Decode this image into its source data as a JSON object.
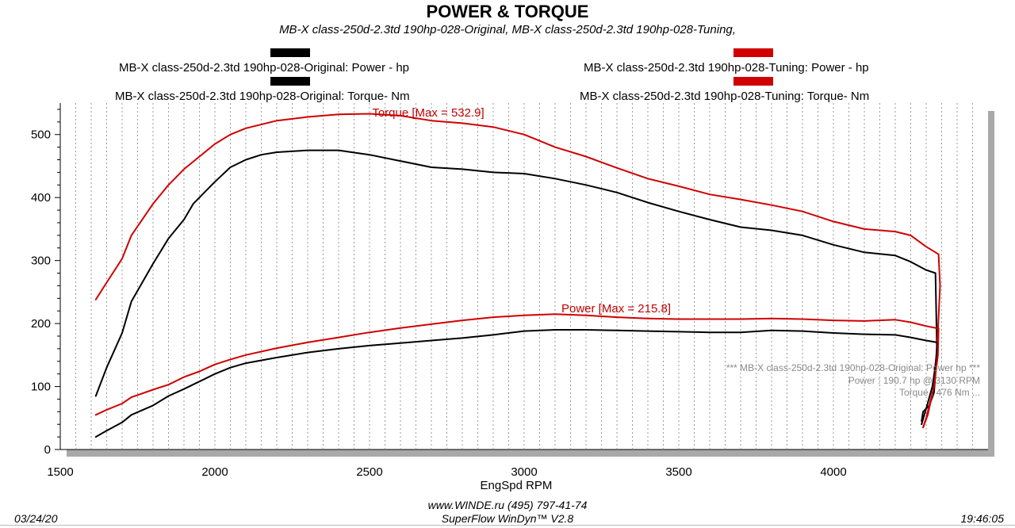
{
  "chart_data": {
    "type": "line",
    "title": "POWER & TORQUE",
    "subtitle": "MB-X class-250d-2.3td 190hp-028-Original, MB-X class-250d-2.3td 190hp-028-Tuning,",
    "xlabel": "EngSpd  RPM",
    "ylabel": "",
    "xlim": [
      1500,
      4500
    ],
    "ylim": [
      0,
      550
    ],
    "x_ticks": [
      1500,
      2000,
      2500,
      3000,
      3500,
      4000
    ],
    "y_ticks": [
      0,
      100,
      200,
      300,
      400,
      500
    ],
    "grid": "vertical dashed",
    "legend": [
      {
        "label": "MB-X class-250d-2.3td 190hp-028-Original: Power -  hp",
        "color": "#000000"
      },
      {
        "label": "MB-X class-250d-2.3td 190hp-028-Original: Torque-  Nm",
        "color": "#000000"
      },
      {
        "label": "MB-X class-250d-2.3td 190hp-028-Tuning: Power -  hp",
        "color": "#d00000"
      },
      {
        "label": "MB-X class-250d-2.3td 190hp-028-Tuning: Torque-  Nm",
        "color": "#d00000"
      }
    ],
    "annotations": {
      "torque_max": "Torque [Max = 532.9]",
      "power_max": "Power  [Max = 215.8]"
    },
    "info_box": {
      "line1": "*** MB-X class-250d-2.3td 190hp-028-Original: Power  hp  ***",
      "line2": "Power :  190.7 hp     @ 3130 RPM",
      "line3": "Torque :  476 Nm     ..."
    },
    "series": [
      {
        "name": "Original Torque",
        "unit": "Nm",
        "color": "#000000",
        "points": [
          [
            1615,
            85
          ],
          [
            1650,
            130
          ],
          [
            1700,
            185
          ],
          [
            1730,
            235
          ],
          [
            1800,
            295
          ],
          [
            1850,
            335
          ],
          [
            1900,
            365
          ],
          [
            1930,
            390
          ],
          [
            2000,
            425
          ],
          [
            2050,
            448
          ],
          [
            2100,
            460
          ],
          [
            2150,
            468
          ],
          [
            2200,
            472
          ],
          [
            2300,
            475
          ],
          [
            2400,
            475
          ],
          [
            2500,
            468
          ],
          [
            2600,
            458
          ],
          [
            2700,
            448
          ],
          [
            2800,
            445
          ],
          [
            2900,
            440
          ],
          [
            3000,
            438
          ],
          [
            3100,
            430
          ],
          [
            3200,
            420
          ],
          [
            3300,
            408
          ],
          [
            3400,
            392
          ],
          [
            3500,
            378
          ],
          [
            3600,
            365
          ],
          [
            3700,
            353
          ],
          [
            3800,
            348
          ],
          [
            3900,
            340
          ],
          [
            4000,
            325
          ],
          [
            4100,
            313
          ],
          [
            4200,
            308
          ],
          [
            4250,
            298
          ],
          [
            4300,
            285
          ],
          [
            4330,
            280
          ],
          [
            4335,
            150
          ],
          [
            4325,
            90
          ],
          [
            4310,
            70
          ],
          [
            4290,
            60
          ],
          [
            4285,
            45
          ]
        ]
      },
      {
        "name": "Tuning Torque",
        "unit": "Nm",
        "color": "#d00000",
        "points": [
          [
            1615,
            238
          ],
          [
            1650,
            265
          ],
          [
            1700,
            303
          ],
          [
            1730,
            340
          ],
          [
            1800,
            390
          ],
          [
            1850,
            420
          ],
          [
            1900,
            445
          ],
          [
            1950,
            465
          ],
          [
            2000,
            485
          ],
          [
            2050,
            500
          ],
          [
            2100,
            510
          ],
          [
            2200,
            522
          ],
          [
            2300,
            528
          ],
          [
            2400,
            532
          ],
          [
            2500,
            533
          ],
          [
            2600,
            530
          ],
          [
            2700,
            522
          ],
          [
            2800,
            518
          ],
          [
            2900,
            512
          ],
          [
            3000,
            500
          ],
          [
            3100,
            480
          ],
          [
            3200,
            465
          ],
          [
            3300,
            447
          ],
          [
            3400,
            430
          ],
          [
            3500,
            418
          ],
          [
            3600,
            405
          ],
          [
            3700,
            397
          ],
          [
            3800,
            388
          ],
          [
            3900,
            378
          ],
          [
            4000,
            362
          ],
          [
            4100,
            350
          ],
          [
            4200,
            346
          ],
          [
            4250,
            340
          ],
          [
            4300,
            322
          ],
          [
            4340,
            310
          ],
          [
            4345,
            260
          ],
          [
            4335,
            160
          ],
          [
            4320,
            90
          ],
          [
            4300,
            50
          ],
          [
            4290,
            35
          ]
        ]
      },
      {
        "name": "Original Power",
        "unit": "hp",
        "color": "#000000",
        "points": [
          [
            1615,
            20
          ],
          [
            1650,
            30
          ],
          [
            1700,
            43
          ],
          [
            1730,
            55
          ],
          [
            1800,
            70
          ],
          [
            1850,
            85
          ],
          [
            1900,
            96
          ],
          [
            1950,
            108
          ],
          [
            2000,
            120
          ],
          [
            2050,
            130
          ],
          [
            2100,
            137
          ],
          [
            2200,
            146
          ],
          [
            2300,
            154
          ],
          [
            2400,
            160
          ],
          [
            2500,
            165
          ],
          [
            2600,
            169
          ],
          [
            2700,
            173
          ],
          [
            2800,
            177
          ],
          [
            2900,
            182
          ],
          [
            3000,
            188
          ],
          [
            3100,
            190
          ],
          [
            3200,
            190
          ],
          [
            3300,
            189
          ],
          [
            3400,
            188
          ],
          [
            3500,
            187
          ],
          [
            3600,
            186
          ],
          [
            3700,
            186
          ],
          [
            3800,
            189
          ],
          [
            3900,
            188
          ],
          [
            4000,
            185
          ],
          [
            4100,
            183
          ],
          [
            4200,
            182
          ],
          [
            4250,
            178
          ],
          [
            4300,
            173
          ],
          [
            4335,
            170
          ],
          [
            4332,
            140
          ],
          [
            4320,
            100
          ],
          [
            4300,
            65
          ],
          [
            4285,
            40
          ]
        ]
      },
      {
        "name": "Tuning Power",
        "unit": "hp",
        "color": "#d00000",
        "points": [
          [
            1615,
            55
          ],
          [
            1650,
            63
          ],
          [
            1700,
            73
          ],
          [
            1730,
            83
          ],
          [
            1800,
            95
          ],
          [
            1850,
            103
          ],
          [
            1900,
            115
          ],
          [
            1950,
            124
          ],
          [
            2000,
            135
          ],
          [
            2050,
            143
          ],
          [
            2100,
            150
          ],
          [
            2200,
            161
          ],
          [
            2300,
            170
          ],
          [
            2400,
            178
          ],
          [
            2500,
            186
          ],
          [
            2600,
            193
          ],
          [
            2700,
            199
          ],
          [
            2800,
            205
          ],
          [
            2900,
            210
          ],
          [
            3000,
            213
          ],
          [
            3100,
            215
          ],
          [
            3200,
            213
          ],
          [
            3300,
            210
          ],
          [
            3400,
            208
          ],
          [
            3500,
            207
          ],
          [
            3600,
            207
          ],
          [
            3700,
            207
          ],
          [
            3800,
            208
          ],
          [
            3900,
            207
          ],
          [
            4000,
            205
          ],
          [
            4100,
            204
          ],
          [
            4200,
            206
          ],
          [
            4250,
            202
          ],
          [
            4300,
            196
          ],
          [
            4340,
            192
          ],
          [
            4338,
            150
          ],
          [
            4325,
            100
          ],
          [
            4305,
            55
          ],
          [
            4290,
            35
          ]
        ]
      }
    ]
  },
  "footer": {
    "date": "03/24/20",
    "time": "19:46:05",
    "website": "www.WINDE.ru  (495) 797-41-74",
    "software": "SuperFlow WinDyn™ V2.8"
  }
}
